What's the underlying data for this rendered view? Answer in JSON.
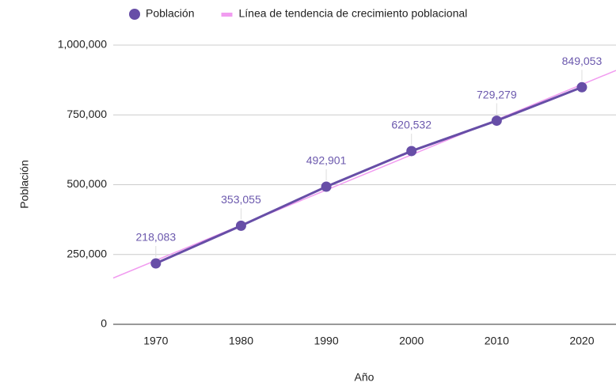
{
  "chart_data": {
    "type": "line",
    "x_label": "Año",
    "y_label": "Población",
    "x": [
      1970,
      1980,
      1990,
      2000,
      2010,
      2020
    ],
    "series": [
      {
        "name": "Población",
        "color": "#674ea7",
        "values": [
          218083,
          353055,
          492901,
          620532,
          729279,
          849053
        ],
        "value_labels": [
          "218,083",
          "353,055",
          "492,901",
          "620,532",
          "729,279",
          "849,053"
        ]
      },
      {
        "name": "Línea de tendencia de crecimiento poblacional",
        "color": "#f19cf0",
        "x": [
          1965,
          2024
        ],
        "values": [
          165719,
          909313
        ]
      }
    ],
    "xlim": [
      1965,
      2024
    ],
    "xticks": [
      1970,
      1980,
      1990,
      2000,
      2010,
      2020
    ],
    "ylim": [
      0,
      1000000
    ],
    "yticks": [
      0,
      {
        "value": 250000,
        "label": "250,000"
      },
      {
        "value": 500000,
        "label": "500,000"
      },
      {
        "value": 750000,
        "label": "750,000"
      },
      {
        "value": 1000000,
        "label": "1,000,000"
      }
    ],
    "grid": true,
    "legend": "top"
  }
}
